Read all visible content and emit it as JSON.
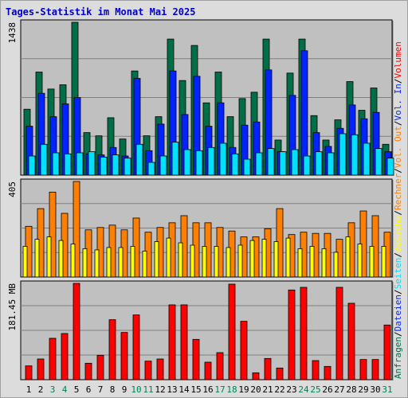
{
  "title": "Tages-Statistik im Monat Mai 2025",
  "chart_data": [
    {
      "type": "bar",
      "panel": "top",
      "ymax_label": "1438",
      "ylim": [
        0,
        1438
      ],
      "categories": [
        "1",
        "2",
        "3",
        "4",
        "5",
        "6",
        "7",
        "8",
        "9",
        "10",
        "11",
        "12",
        "13",
        "14",
        "15",
        "16",
        "17",
        "18",
        "19",
        "20",
        "21",
        "22",
        "23",
        "24",
        "25",
        "26",
        "27",
        "28",
        "29",
        "30",
        "31"
      ],
      "series": [
        {
          "name": "Anfragen",
          "color": "#006e46",
          "values": [
            620,
            970,
            810,
            850,
            1438,
            400,
            370,
            540,
            340,
            980,
            370,
            550,
            1280,
            890,
            1220,
            680,
            970,
            550,
            720,
            780,
            1280,
            330,
            960,
            1280,
            560,
            330,
            520,
            880,
            610,
            820,
            290
          ]
        },
        {
          "name": "Dateien",
          "color": "#0024ff",
          "values": [
            460,
            770,
            550,
            670,
            730,
            200,
            190,
            260,
            180,
            910,
            230,
            480,
            980,
            570,
            930,
            460,
            680,
            260,
            470,
            500,
            990,
            220,
            750,
            1170,
            400,
            270,
            440,
            660,
            530,
            590,
            220
          ]
        },
        {
          "name": "Seiten",
          "color": "#00e0ff",
          "values": [
            180,
            290,
            210,
            200,
            210,
            220,
            170,
            190,
            160,
            290,
            120,
            180,
            310,
            240,
            230,
            260,
            300,
            200,
            150,
            210,
            250,
            220,
            240,
            180,
            220,
            210,
            390,
            380,
            300,
            250,
            160
          ]
        }
      ]
    },
    {
      "type": "bar",
      "panel": "middle",
      "ymax_label": "405",
      "ylim": [
        0,
        405
      ],
      "categories": [
        "1",
        "2",
        "3",
        "4",
        "5",
        "6",
        "7",
        "8",
        "9",
        "10",
        "11",
        "12",
        "13",
        "14",
        "15",
        "16",
        "17",
        "18",
        "19",
        "20",
        "21",
        "22",
        "23",
        "24",
        "25",
        "26",
        "27",
        "28",
        "29",
        "30",
        "31"
      ],
      "series": [
        {
          "name": "Rechner",
          "color": "#ff8000",
          "values": [
            215,
            290,
            360,
            270,
            405,
            200,
            210,
            220,
            200,
            250,
            190,
            210,
            230,
            260,
            230,
            230,
            210,
            195,
            170,
            170,
            205,
            290,
            180,
            190,
            185,
            185,
            160,
            230,
            280,
            260,
            190
          ]
        },
        {
          "name": "Besuche",
          "color": "#ffff00",
          "values": [
            130,
            160,
            170,
            155,
            140,
            120,
            115,
            125,
            125,
            130,
            110,
            150,
            165,
            145,
            135,
            130,
            130,
            125,
            135,
            155,
            160,
            150,
            165,
            120,
            130,
            120,
            105,
            170,
            140,
            130,
            130
          ]
        }
      ]
    },
    {
      "type": "bar",
      "panel": "bottom",
      "ymax_label": "181.45 MB",
      "ylim": [
        0,
        181.45
      ],
      "categories": [
        "1",
        "2",
        "3",
        "4",
        "5",
        "6",
        "7",
        "8",
        "9",
        "10",
        "11",
        "12",
        "13",
        "14",
        "15",
        "16",
        "17",
        "18",
        "19",
        "20",
        "21",
        "22",
        "23",
        "24",
        "25",
        "26",
        "27",
        "28",
        "29",
        "30",
        "31"
      ],
      "series": [
        {
          "name": "Volumen",
          "color": "#ff0000",
          "values": [
            26,
            39,
            78,
            87,
            181.45,
            31,
            46,
            113,
            89,
            122,
            35,
            39,
            141,
            141,
            76,
            33,
            51,
            180,
            110,
            13,
            40,
            22,
            169,
            174,
            36,
            25,
            174,
            144,
            38,
            38,
            103
          ]
        }
      ]
    }
  ],
  "right_legend": [
    {
      "text": "Anfragen",
      "color": "#006e46"
    },
    {
      "text": "/",
      "color": "#000000"
    },
    {
      "text": "Dateien",
      "color": "#0024ff"
    },
    {
      "text": "/",
      "color": "#000000"
    },
    {
      "text": "Seiten",
      "color": "#00e0ff"
    },
    {
      "text": "/",
      "color": "#000000"
    },
    {
      "text": "Besuche",
      "color": "#ffff00"
    },
    {
      "text": "/",
      "color": "#000000"
    },
    {
      "text": "Rechner",
      "color": "#ff8000"
    },
    {
      "text": "/",
      "color": "#000000"
    },
    {
      "text": "Vol. Out",
      "color": "#ff8000"
    },
    {
      "text": "/",
      "color": "#000000"
    },
    {
      "text": "Vol. In",
      "color": "#0024ff"
    },
    {
      "text": "/",
      "color": "#000000"
    },
    {
      "text": "Volumen",
      "color": "#ff0000"
    }
  ],
  "weekend_days": [
    "3",
    "4",
    "10",
    "11",
    "17",
    "18",
    "24",
    "25",
    "31"
  ],
  "weekday_color": "#000000",
  "weekend_color": "#00805a"
}
